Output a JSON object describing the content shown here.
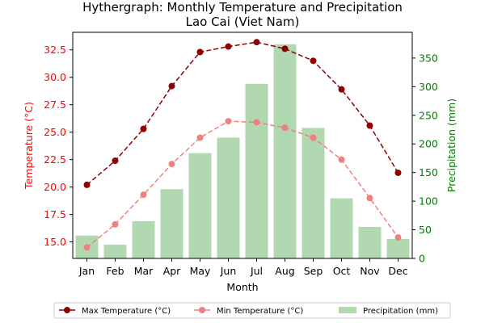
{
  "chart_data": {
    "type": "bar+line",
    "title_line1": "Hythergraph: Monthly Temperature and Precipitation",
    "title_line2": "Lao Cai (Viet Nam)",
    "xlabel": "Month",
    "ylabel_left": "Temperature (°C)",
    "ylabel_right": "Precipitation (mm)",
    "categories": [
      "Jan",
      "Feb",
      "Mar",
      "Apr",
      "May",
      "Jun",
      "Jul",
      "Aug",
      "Sep",
      "Oct",
      "Nov",
      "Dec"
    ],
    "y_left_lim": [
      13.5,
      34.1
    ],
    "y_right_lim": [
      0,
      395
    ],
    "y_left_ticks": [
      "15.0",
      "17.5",
      "20.0",
      "22.5",
      "25.0",
      "27.5",
      "30.0",
      "32.5"
    ],
    "y_left_tick_values": [
      15.0,
      17.5,
      20.0,
      22.5,
      25.0,
      27.5,
      30.0,
      32.5
    ],
    "y_right_ticks": [
      "0",
      "50",
      "100",
      "150",
      "200",
      "250",
      "300",
      "350"
    ],
    "y_right_tick_values": [
      0,
      50,
      100,
      150,
      200,
      250,
      300,
      350
    ],
    "series": [
      {
        "name": "Max Temperature (°C)",
        "kind": "line",
        "axis": "left",
        "values": [
          20.2,
          22.4,
          25.3,
          29.2,
          32.3,
          32.8,
          33.2,
          32.6,
          31.5,
          28.9,
          25.6,
          21.3
        ]
      },
      {
        "name": "Min Temperature (°C)",
        "kind": "line",
        "axis": "left",
        "values": [
          14.5,
          16.6,
          19.3,
          22.1,
          24.5,
          26.0,
          25.9,
          25.4,
          24.5,
          22.5,
          19.0,
          15.4
        ]
      },
      {
        "name": "Precipitation (mm)",
        "kind": "bar",
        "axis": "right",
        "values": [
          40,
          24,
          65,
          121,
          184,
          211,
          305,
          374,
          228,
          105,
          55,
          34
        ]
      }
    ],
    "colors": {
      "max_temp": "#8b0000",
      "min_temp": "#f08080",
      "precip": "#b2d8b2",
      "left_axis": "#ff0000",
      "right_axis": "#008000"
    },
    "legend_position": "bottom-center"
  }
}
